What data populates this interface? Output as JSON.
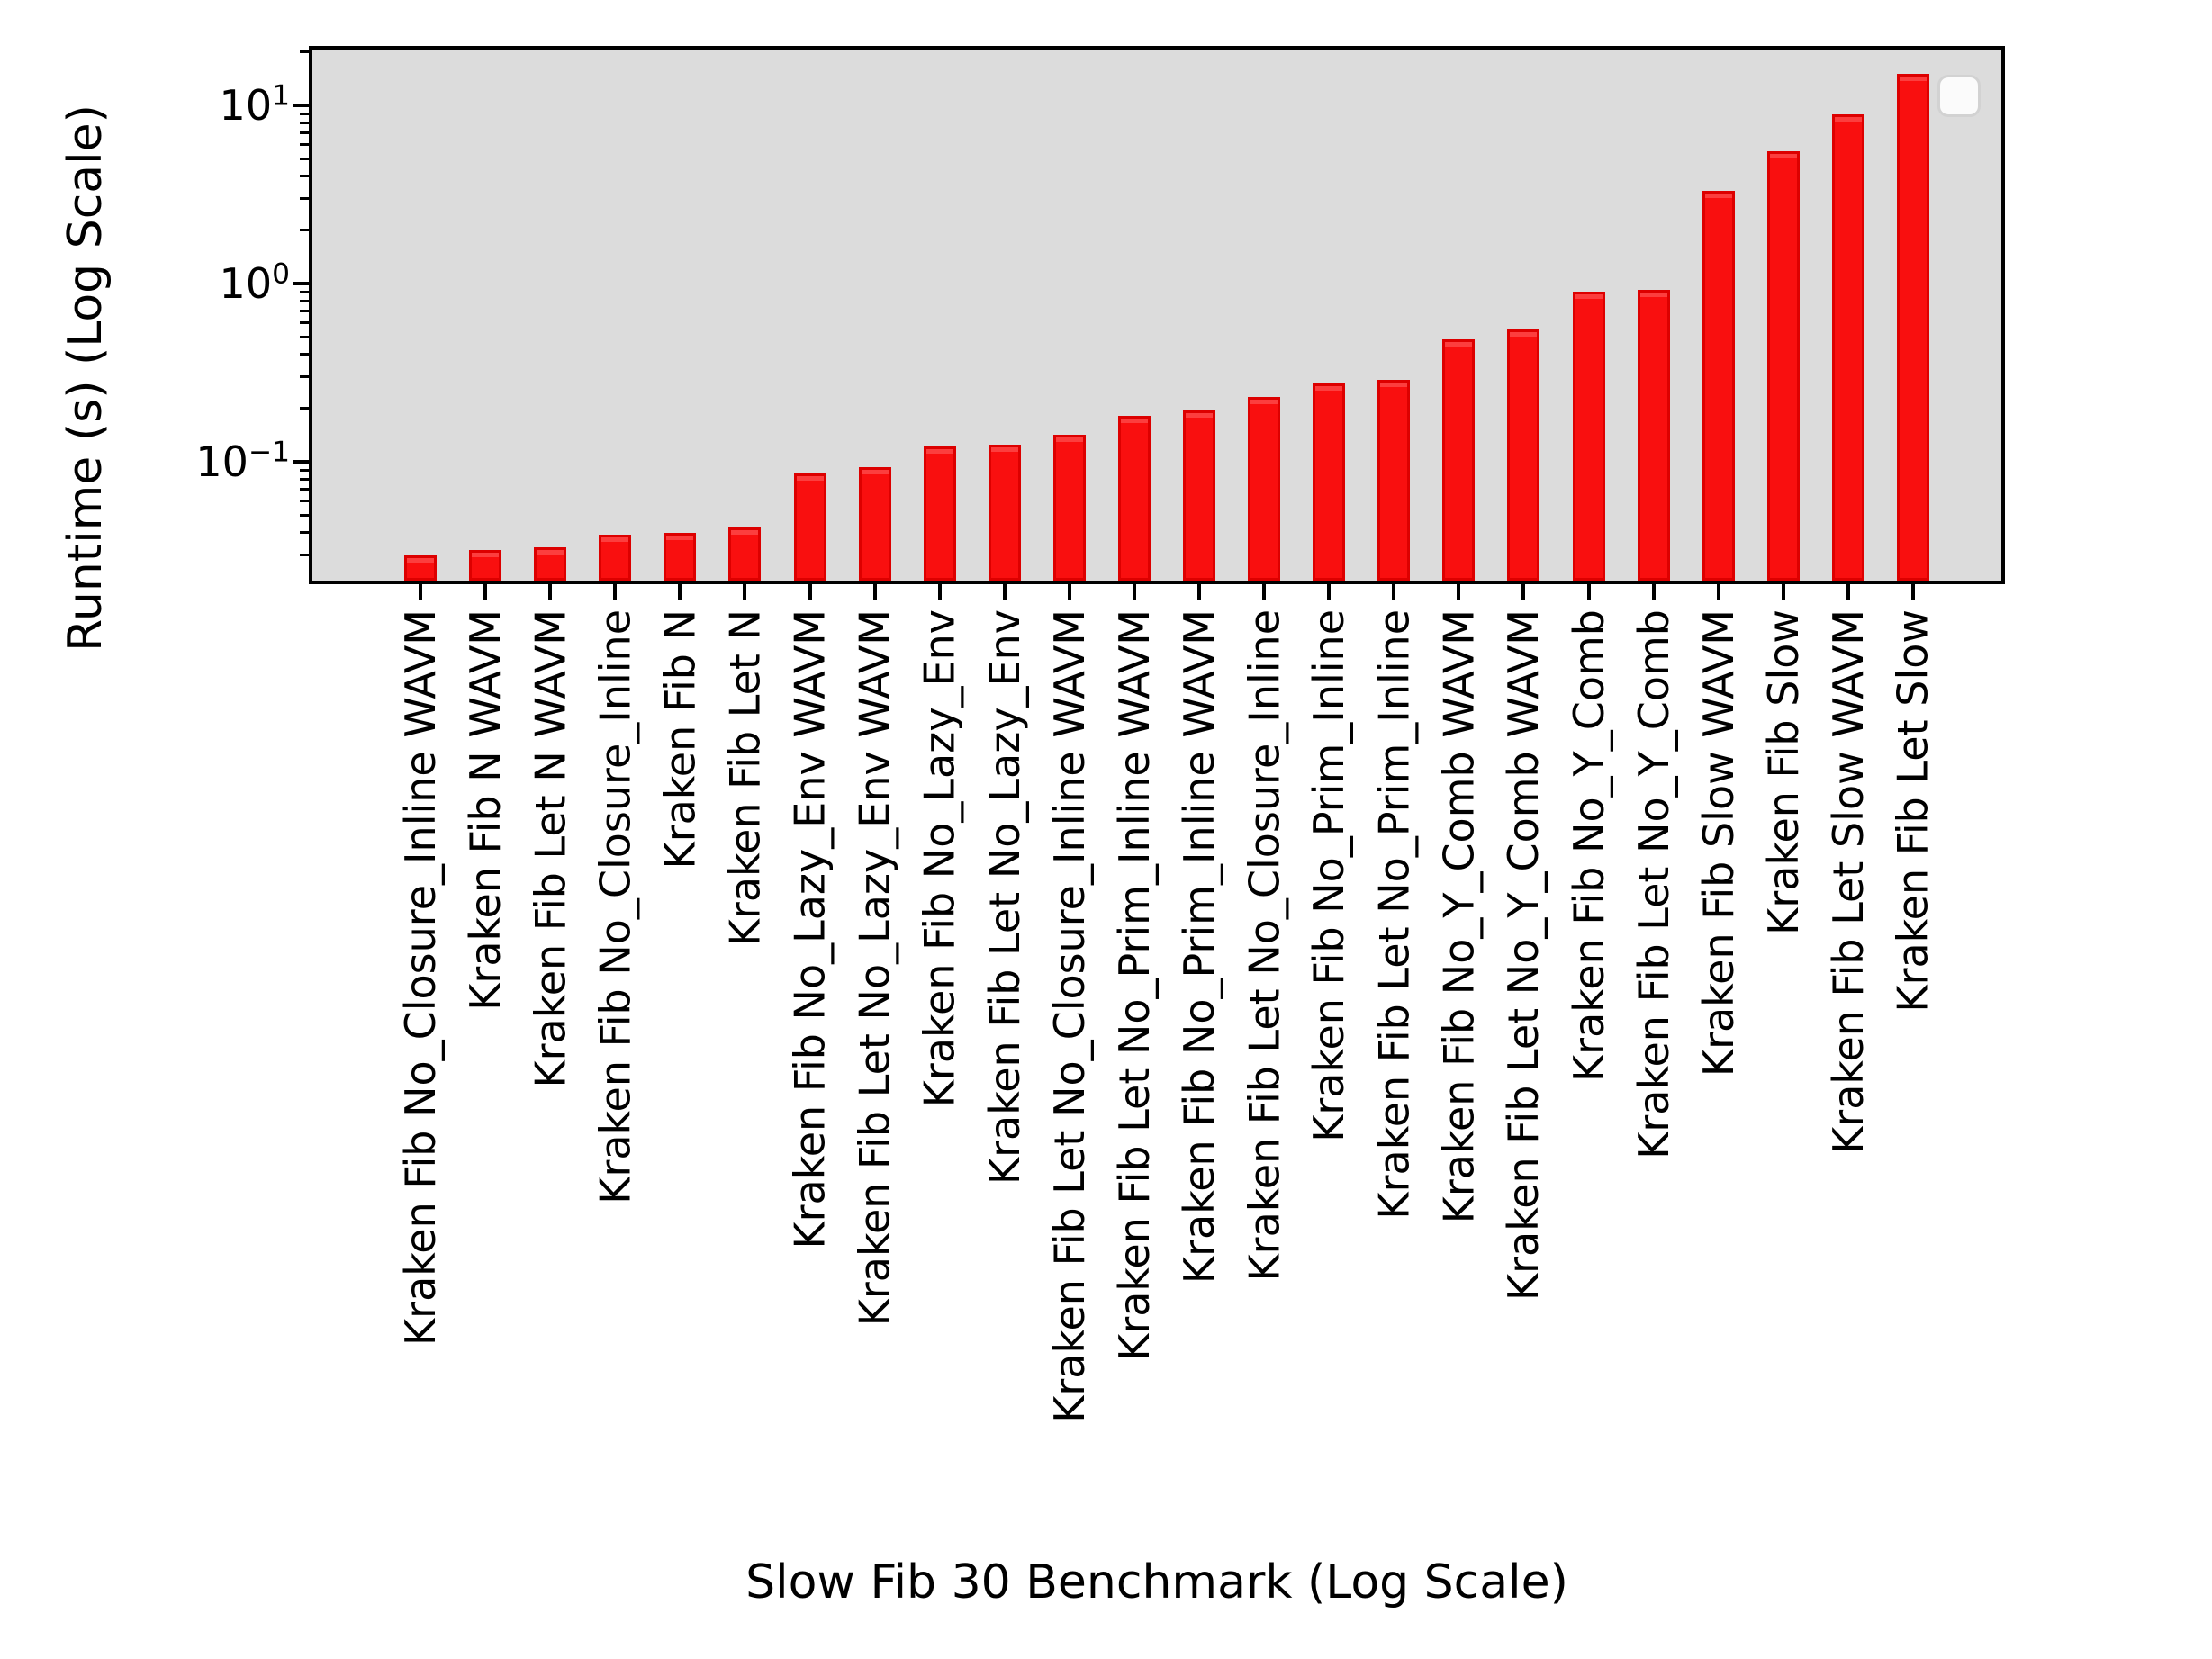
{
  "chart_data": {
    "type": "bar",
    "title": "",
    "xlabel": "Slow Fib 30 Benchmark (Log Scale)",
    "ylabel": "Runtime (s) (Log Scale)",
    "y_scale": "log",
    "ylim": [
      0.0215,
      20.6
    ],
    "grid": false,
    "bar_color": "#f90f0f",
    "bar_edge_color": "#dd0000",
    "plot_bg_color": "#dcdcdc",
    "legend": {
      "visible": true,
      "entries": [],
      "position": "upper-right"
    },
    "y_major_tick_exponents": [
      1,
      0,
      -1
    ],
    "y_minor_ticks": [
      0.03,
      0.04,
      0.05,
      0.06,
      0.07,
      0.08,
      0.09,
      0.2,
      0.3,
      0.4,
      0.5,
      0.6,
      0.7,
      0.8,
      0.9,
      2,
      3,
      4,
      5,
      6,
      7,
      8,
      9,
      20
    ],
    "categories": [
      "Kraken Fib No_Closure_Inline WAVM",
      "Kraken Fib N WAVM",
      "Kraken Fib Let N WAVM",
      "Kraken Fib No_Closure_Inline",
      "Kraken Fib N",
      "Kraken Fib Let N",
      "Kraken Fib No_Lazy_Env WAVM",
      "Kraken Fib Let No_Lazy_Env WAVM",
      "Kraken Fib No_Lazy_Env",
      "Kraken Fib Let No_Lazy_Env",
      "Kraken Fib Let No_Closure_Inline WAVM",
      "Kraken Fib Let No_Prim_Inline WAVM",
      "Kraken Fib No_Prim_Inline WAVM",
      "Kraken Fib Let No_Closure_Inline",
      "Kraken Fib No_Prim_Inline",
      "Kraken Fib Let No_Prim_Inline",
      "Kraken Fib No_Y_Comb WAVM",
      "Kraken Fib Let No_Y_Comb WAVM",
      "Kraken Fib No_Y_Comb",
      "Kraken Fib Let No_Y_Comb",
      "Kraken Fib Slow WAVM",
      "Kraken Fib Slow",
      "Kraken Fib Let Slow WAVM",
      "Kraken Fib Let Slow"
    ],
    "values": [
      0.03,
      0.032,
      0.033,
      0.039,
      0.04,
      0.043,
      0.086,
      0.093,
      0.122,
      0.125,
      0.141,
      0.18,
      0.193,
      0.231,
      0.275,
      0.288,
      0.485,
      0.555,
      0.898,
      0.919,
      3.3,
      5.51,
      8.93,
      15.0
    ]
  }
}
